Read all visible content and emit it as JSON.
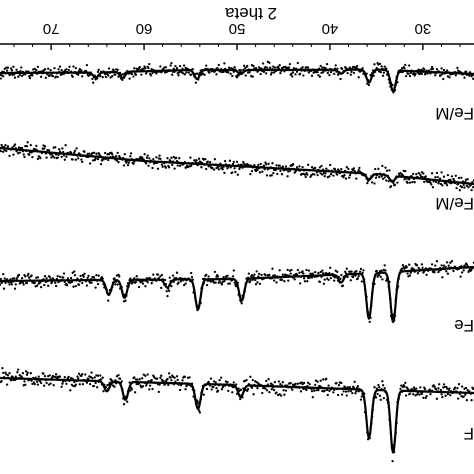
{
  "chart_data": {
    "type": "scatter",
    "orientation": "mirrored-horizontal",
    "xlabel": "2 theta",
    "xlim": [
      24.5,
      75.5
    ],
    "x_ticks": [
      30,
      40,
      50,
      60,
      70
    ],
    "x_tick_labels": [
      "30",
      "40",
      "50",
      "60",
      "70"
    ],
    "axis_position": "top",
    "grid": false,
    "legend": "none",
    "series": [
      {
        "name": "Fe/M",
        "baseline": [
          [
            24.5,
            74.0
          ],
          [
            35,
            69.5
          ],
          [
            45,
            70.0
          ],
          [
            55,
            70.0
          ],
          [
            65,
            72.5
          ],
          [
            75.5,
            73.0
          ]
        ],
        "scatter": 5,
        "peaks": [
          [
            33.2,
            21
          ],
          [
            35.8,
            13
          ],
          [
            38.8,
            4
          ],
          [
            49.6,
            4
          ],
          [
            54.3,
            9
          ],
          [
            62.3,
            6
          ],
          [
            65.2,
            5
          ]
        ]
      },
      {
        "name": "Fe/M",
        "baseline": [
          [
            24.5,
            184.0
          ],
          [
            35,
            174.0
          ],
          [
            50,
            166.0
          ],
          [
            60,
            161.0
          ],
          [
            75.5,
            148.0
          ]
        ],
        "scatter": 6,
        "peaks": [
          [
            33.3,
            6
          ],
          [
            35.8,
            6
          ]
        ]
      },
      {
        "name": "Fe",
        "baseline": [
          [
            24.5,
            267.0
          ],
          [
            35,
            273.0
          ],
          [
            50,
            279.0
          ],
          [
            65,
            280.0
          ],
          [
            75.5,
            281.0
          ]
        ],
        "scatter": 6,
        "peaks": [
          [
            33.2,
            50
          ],
          [
            35.8,
            45
          ],
          [
            49.5,
            22
          ],
          [
            54.2,
            30
          ],
          [
            62.1,
            18
          ],
          [
            63.8,
            15
          ],
          [
            38.8,
            8
          ],
          [
            57.5,
            8
          ]
        ]
      },
      {
        "name": "F",
        "baseline": [
          [
            24.5,
            393.0
          ],
          [
            35,
            390.0
          ],
          [
            50,
            385.0
          ],
          [
            65,
            381.0
          ],
          [
            75.5,
            378.0
          ]
        ],
        "scatter": 7,
        "peaks": [
          [
            33.2,
            62
          ],
          [
            35.8,
            48
          ],
          [
            49.6,
            12
          ],
          [
            54.2,
            25
          ],
          [
            62.0,
            18
          ],
          [
            64.0,
            10
          ]
        ]
      }
    ]
  }
}
